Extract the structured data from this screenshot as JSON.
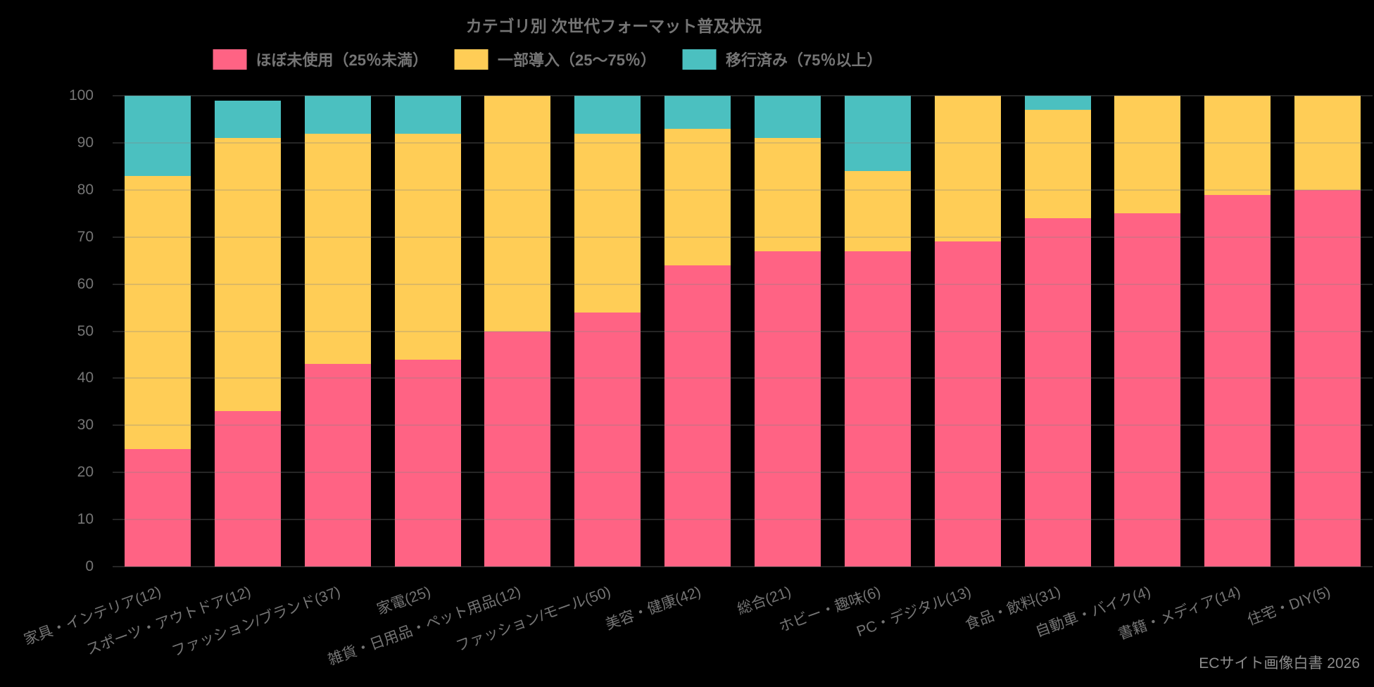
{
  "page": {
    "background_color": "#000000",
    "text_color": "#757575",
    "footer_color": "#8c8c8c",
    "footer": "ECサイト画像白書 2026"
  },
  "chart_data": {
    "type": "bar",
    "stacked": true,
    "title": "カテゴリ別 次世代フォーマット普及状況",
    "legend_position": "top",
    "grid": true,
    "ylim": [
      0,
      100
    ],
    "ytick_step": 10,
    "ytick_labels": [
      "0",
      "10",
      "20",
      "30",
      "40",
      "50",
      "60",
      "70",
      "80",
      "90",
      "100"
    ],
    "categories": [
      "家具・インテリア(12)",
      "スポーツ・アウトドア(12)",
      "ファッション/ブランド(37)",
      "家電(25)",
      "雑貨・日用品・ペット用品(12)",
      "ファッション/モール(50)",
      "美容・健康(42)",
      "総合(21)",
      "ホビー・趣味(6)",
      "PC・デジタル(13)",
      "食品・飲料(31)",
      "自動車・バイク(4)",
      "書籍・メディア(14)",
      "住宅・DIY(5)"
    ],
    "series": [
      {
        "name": "ほぼ未使用（25％未満）",
        "color": "#FF6384",
        "values": [
          25,
          33,
          43,
          44,
          50,
          54,
          64,
          67,
          67,
          69,
          74,
          75,
          79,
          80
        ]
      },
      {
        "name": "一部導入（25〜75％）",
        "color": "#FFCD56",
        "values": [
          58,
          58,
          49,
          48,
          50,
          38,
          29,
          24,
          17,
          31,
          23,
          25,
          21,
          20
        ]
      },
      {
        "name": "移行済み（75％以上）",
        "color": "#4BC0C0",
        "values": [
          17,
          8,
          8,
          8,
          0,
          8,
          7,
          9,
          16,
          0,
          3,
          0,
          0,
          0
        ]
      }
    ],
    "source_note": "ECサイト画像白書 2026"
  }
}
